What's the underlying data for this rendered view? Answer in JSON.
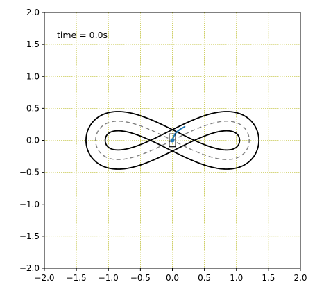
{
  "chart_data": {
    "type": "line",
    "title": "",
    "xlabel": "",
    "ylabel": "",
    "xlim": [
      -2.0,
      2.0
    ],
    "ylim": [
      -2.0,
      2.0
    ],
    "grid": true,
    "x_ticks": [
      "−2.0",
      "−1.5",
      "−1.0",
      "−0.5",
      "0.0",
      "0.5",
      "1.0",
      "1.5",
      "2.0"
    ],
    "y_ticks": [
      "2.0",
      "1.5",
      "1.0",
      "0.5",
      "0.0",
      "−0.5",
      "−1.0",
      "−1.5",
      "−2.0"
    ],
    "annotation": "time = 0.0s",
    "track": {
      "center_amplitude_x": 1.2,
      "center_amplitude_y": 0.6,
      "half_width": 0.15
    },
    "vehicle": {
      "x": 0.0,
      "y": 0.0,
      "width": 0.1,
      "height": 0.2
    },
    "trajectory": {
      "x": [
        0.0,
        0.02,
        0.05,
        0.09,
        0.13,
        0.17,
        0.2
      ],
      "y": [
        0.0,
        0.06,
        0.11,
        0.15,
        0.18,
        0.2,
        0.22
      ]
    },
    "colors": {
      "track_boundary": "#000000",
      "centerline": "#808080",
      "trajectory": "#1f77b4",
      "grid": "#b0b000"
    }
  }
}
